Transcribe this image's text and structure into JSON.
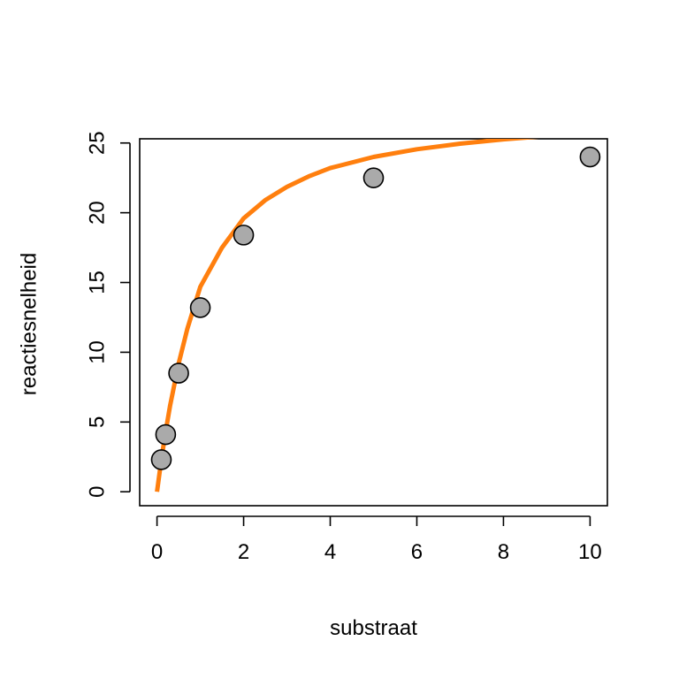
{
  "chart_data": {
    "type": "scatter",
    "title": "",
    "xlabel": "substraat",
    "ylabel": "reactiesnelheid",
    "xlim": [
      -0.4,
      10.4
    ],
    "ylim": [
      -1,
      25.3
    ],
    "x_ticks": [
      0,
      2,
      4,
      6,
      8,
      10
    ],
    "y_ticks": [
      0,
      5,
      10,
      15,
      20,
      25
    ],
    "grid": false,
    "legend": "none",
    "series": [
      {
        "type": "scatter",
        "x": [
          0.1,
          0.2,
          0.5,
          1,
          2,
          5,
          10
        ],
        "y": [
          2.3,
          4.1,
          8.5,
          13.2,
          18.4,
          22.5,
          24.0
        ],
        "color": "#aaaaaa",
        "edge_color": "#000000"
      },
      {
        "type": "line",
        "x": [
          0,
          0.1,
          0.2,
          0.3,
          0.5,
          0.7,
          1,
          1.5,
          2,
          2.5,
          3,
          3.5,
          4,
          5,
          6,
          7,
          8,
          9,
          10
        ],
        "y": [
          0,
          2.3,
          4.33,
          6.14,
          9.2,
          11.68,
          14.7,
          17.5,
          19.6,
          20.9,
          21.85,
          22.6,
          23.2,
          24.0,
          24.55,
          24.95,
          25.26,
          25.5,
          25.68
        ],
        "color": "#ff7f0e"
      }
    ]
  }
}
